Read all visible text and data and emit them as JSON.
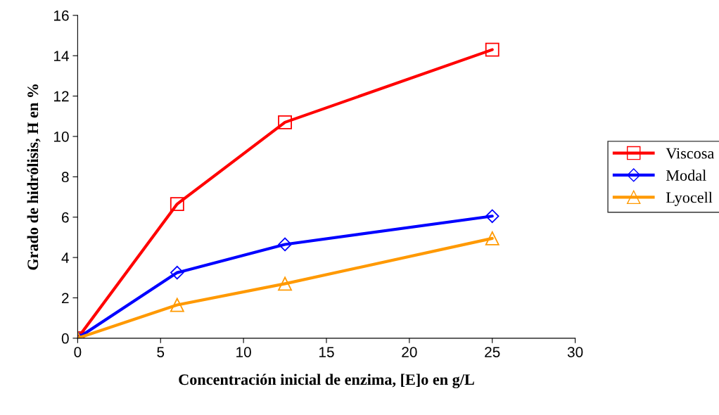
{
  "chart_data": {
    "type": "line",
    "xlabel": "Concentración inicial de enzima, [E]o en g/L",
    "ylabel": "Grado de hidrólisis, H en %",
    "xlim": [
      0,
      30
    ],
    "xticks": [
      0,
      5,
      10,
      15,
      20,
      25,
      30
    ],
    "ylim": [
      0,
      16
    ],
    "yticks": [
      0,
      2,
      4,
      6,
      8,
      10,
      12,
      14,
      16
    ],
    "x": [
      0,
      6,
      12.5,
      25
    ],
    "series": [
      {
        "name": "Viscosa",
        "color": "#ff0000",
        "marker": "square",
        "values": [
          0,
          6.65,
          10.7,
          14.3
        ]
      },
      {
        "name": "Modal",
        "color": "#0000ff",
        "marker": "diamond",
        "values": [
          0,
          3.25,
          4.65,
          6.05
        ]
      },
      {
        "name": "Lyocell",
        "color": "#ff9900",
        "marker": "triangle",
        "values": [
          0,
          1.65,
          2.7,
          4.95
        ]
      }
    ],
    "grid": false,
    "legend": "right",
    "line_style": "solid"
  }
}
